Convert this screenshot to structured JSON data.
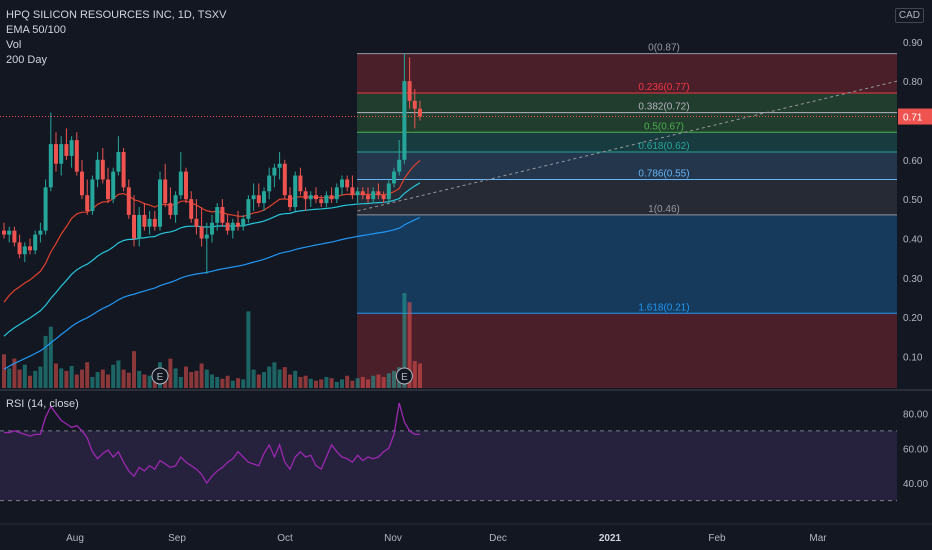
{
  "header": {
    "title": "HPQ SILICON RESOURCES INC, 1D, TSXV",
    "indicators": [
      "EMA 50/100",
      "Vol",
      "200 Day"
    ],
    "currency": "CAD"
  },
  "rsi": {
    "label": "RSI (14, close)",
    "levels": [
      70,
      30
    ],
    "ticks": [
      "80.00",
      "60.00",
      "40.00"
    ]
  },
  "colors": {
    "up": "#26a69a",
    "down": "#ef5350",
    "ema50": "#e0412c",
    "ema100": "#26c6da",
    "ema200": "#2196f3",
    "rsi": "#9c27b0",
    "price_tag": "#ef5350"
  },
  "chart_data": {
    "type": "candlestick",
    "price_axis": {
      "ylim": [
        0.02,
        0.93
      ],
      "ticks": [
        "0.90",
        "0.80",
        "0.60",
        "0.50",
        "0.40",
        "0.30",
        "0.20",
        "0.10"
      ]
    },
    "time_axis": {
      "labels": [
        "Aug",
        "Sep",
        "Oct",
        "Nov",
        "Dec",
        "2021",
        "Feb",
        "Mar"
      ]
    },
    "last_price": "0.71",
    "fib_levels": [
      {
        "label": "0(0.87)",
        "value": 0.87,
        "color": "#9598a1"
      },
      {
        "label": "0.236(0.77)",
        "value": 0.77,
        "color": "#f23645"
      },
      {
        "label": "0.382(0.72)",
        "value": 0.72,
        "color": "#b2b5be"
      },
      {
        "label": "0.5(0.67)",
        "value": 0.67,
        "color": "#4caf50"
      },
      {
        "label": "0.618(0.62)",
        "value": 0.62,
        "color": "#26a69a"
      },
      {
        "label": "0.786(0.55)",
        "value": 0.55,
        "color": "#64b5f6"
      },
      {
        "label": "1(0.46)",
        "value": 0.46,
        "color": "#9598a1"
      },
      {
        "label": "1.618(0.21)",
        "value": 0.21,
        "color": "#2196f3"
      }
    ],
    "candles": [
      [
        0.42,
        0.44,
        0.4,
        0.41
      ],
      [
        0.41,
        0.43,
        0.39,
        0.42
      ],
      [
        0.42,
        0.43,
        0.38,
        0.39
      ],
      [
        0.39,
        0.41,
        0.35,
        0.36
      ],
      [
        0.36,
        0.39,
        0.34,
        0.38
      ],
      [
        0.38,
        0.4,
        0.36,
        0.37
      ],
      [
        0.37,
        0.42,
        0.36,
        0.41
      ],
      [
        0.41,
        0.44,
        0.39,
        0.42
      ],
      [
        0.42,
        0.55,
        0.41,
        0.53
      ],
      [
        0.53,
        0.72,
        0.52,
        0.64
      ],
      [
        0.64,
        0.67,
        0.57,
        0.59
      ],
      [
        0.59,
        0.66,
        0.56,
        0.64
      ],
      [
        0.64,
        0.68,
        0.6,
        0.61
      ],
      [
        0.61,
        0.66,
        0.58,
        0.65
      ],
      [
        0.65,
        0.67,
        0.56,
        0.57
      ],
      [
        0.57,
        0.6,
        0.5,
        0.51
      ],
      [
        0.51,
        0.55,
        0.46,
        0.47
      ],
      [
        0.47,
        0.56,
        0.46,
        0.55
      ],
      [
        0.55,
        0.62,
        0.53,
        0.6
      ],
      [
        0.6,
        0.63,
        0.54,
        0.55
      ],
      [
        0.55,
        0.58,
        0.49,
        0.5
      ],
      [
        0.5,
        0.58,
        0.49,
        0.57
      ],
      [
        0.57,
        0.66,
        0.56,
        0.62
      ],
      [
        0.62,
        0.63,
        0.52,
        0.53
      ],
      [
        0.53,
        0.55,
        0.45,
        0.46
      ],
      [
        0.46,
        0.51,
        0.38,
        0.4
      ],
      [
        0.4,
        0.48,
        0.38,
        0.46
      ],
      [
        0.46,
        0.49,
        0.42,
        0.43
      ],
      [
        0.43,
        0.47,
        0.41,
        0.45
      ],
      [
        0.45,
        0.47,
        0.42,
        0.43
      ],
      [
        0.43,
        0.57,
        0.42,
        0.55
      ],
      [
        0.55,
        0.59,
        0.48,
        0.49
      ],
      [
        0.49,
        0.53,
        0.45,
        0.46
      ],
      [
        0.46,
        0.52,
        0.44,
        0.51
      ],
      [
        0.51,
        0.62,
        0.5,
        0.57
      ],
      [
        0.57,
        0.58,
        0.49,
        0.5
      ],
      [
        0.5,
        0.52,
        0.44,
        0.45
      ],
      [
        0.45,
        0.5,
        0.41,
        0.43
      ],
      [
        0.43,
        0.48,
        0.38,
        0.4
      ],
      [
        0.4,
        0.44,
        0.31,
        0.41
      ],
      [
        0.41,
        0.46,
        0.39,
        0.44
      ],
      [
        0.44,
        0.49,
        0.42,
        0.48
      ],
      [
        0.48,
        0.5,
        0.43,
        0.44
      ],
      [
        0.44,
        0.46,
        0.41,
        0.42
      ],
      [
        0.42,
        0.45,
        0.4,
        0.44
      ],
      [
        0.44,
        0.47,
        0.42,
        0.43
      ],
      [
        0.43,
        0.46,
        0.42,
        0.45
      ],
      [
        0.45,
        0.51,
        0.44,
        0.5
      ],
      [
        0.5,
        0.54,
        0.47,
        0.51
      ],
      [
        0.51,
        0.54,
        0.48,
        0.49
      ],
      [
        0.49,
        0.53,
        0.47,
        0.52
      ],
      [
        0.52,
        0.58,
        0.5,
        0.56
      ],
      [
        0.56,
        0.59,
        0.53,
        0.58
      ],
      [
        0.58,
        0.62,
        0.55,
        0.59
      ],
      [
        0.59,
        0.6,
        0.5,
        0.51
      ],
      [
        0.51,
        0.53,
        0.47,
        0.48
      ],
      [
        0.48,
        0.57,
        0.47,
        0.56
      ],
      [
        0.56,
        0.58,
        0.51,
        0.52
      ],
      [
        0.52,
        0.53,
        0.47,
        0.5
      ],
      [
        0.5,
        0.52,
        0.48,
        0.51
      ],
      [
        0.51,
        0.53,
        0.49,
        0.5
      ],
      [
        0.5,
        0.51,
        0.48,
        0.49
      ],
      [
        0.49,
        0.52,
        0.48,
        0.51
      ],
      [
        0.51,
        0.53,
        0.49,
        0.5
      ],
      [
        0.5,
        0.54,
        0.49,
        0.53
      ],
      [
        0.53,
        0.56,
        0.51,
        0.55
      ],
      [
        0.55,
        0.56,
        0.52,
        0.53
      ],
      [
        0.53,
        0.56,
        0.5,
        0.51
      ],
      [
        0.51,
        0.53,
        0.49,
        0.52
      ],
      [
        0.52,
        0.53,
        0.5,
        0.51
      ],
      [
        0.51,
        0.53,
        0.49,
        0.5
      ],
      [
        0.5,
        0.53,
        0.49,
        0.52
      ],
      [
        0.52,
        0.54,
        0.5,
        0.51
      ],
      [
        0.51,
        0.52,
        0.49,
        0.5
      ],
      [
        0.5,
        0.55,
        0.49,
        0.54
      ],
      [
        0.54,
        0.58,
        0.53,
        0.57
      ],
      [
        0.57,
        0.65,
        0.56,
        0.6
      ],
      [
        0.6,
        0.87,
        0.59,
        0.8
      ],
      [
        0.8,
        0.86,
        0.73,
        0.75
      ],
      [
        0.75,
        0.78,
        0.68,
        0.73
      ],
      [
        0.73,
        0.75,
        0.7,
        0.71
      ]
    ],
    "volume": [
      0.55,
      0.32,
      0.48,
      0.3,
      0.38,
      0.2,
      0.28,
      0.35,
      0.85,
      1.0,
      0.4,
      0.32,
      0.28,
      0.36,
      0.22,
      0.3,
      0.42,
      0.18,
      0.26,
      0.3,
      0.22,
      0.38,
      0.45,
      0.3,
      0.25,
      0.6,
      0.28,
      0.22,
      0.2,
      0.25,
      0.42,
      0.3,
      0.48,
      0.32,
      0.18,
      0.35,
      0.26,
      0.28,
      0.4,
      0.3,
      0.22,
      0.18,
      0.15,
      0.2,
      0.12,
      0.16,
      0.14,
      1.25,
      0.3,
      0.22,
      0.26,
      0.35,
      0.42,
      0.3,
      0.34,
      0.22,
      0.28,
      0.18,
      0.2,
      0.15,
      0.12,
      0.14,
      0.18,
      0.16,
      0.1,
      0.14,
      0.2,
      0.12,
      0.16,
      0.18,
      0.14,
      0.2,
      0.22,
      0.18,
      0.24,
      0.28,
      0.34,
      1.55,
      1.4,
      0.44,
      0.4
    ],
    "rsi": [
      69,
      69,
      70,
      69,
      68,
      67,
      68,
      68,
      78,
      84,
      80,
      76,
      74,
      72,
      73,
      70,
      66,
      58,
      54,
      57,
      59,
      55,
      58,
      52,
      47,
      44,
      49,
      47,
      50,
      48,
      53,
      51,
      49,
      50,
      55,
      52,
      50,
      48,
      45,
      40,
      44,
      47,
      49,
      52,
      54,
      58,
      55,
      52,
      51,
      50,
      57,
      62,
      55,
      62,
      52,
      48,
      55,
      58,
      55,
      56,
      50,
      48,
      55,
      62,
      58,
      55,
      54,
      52,
      56,
      53,
      55,
      54,
      55,
      58,
      60,
      68,
      86,
      75,
      70,
      68,
      68
    ]
  }
}
